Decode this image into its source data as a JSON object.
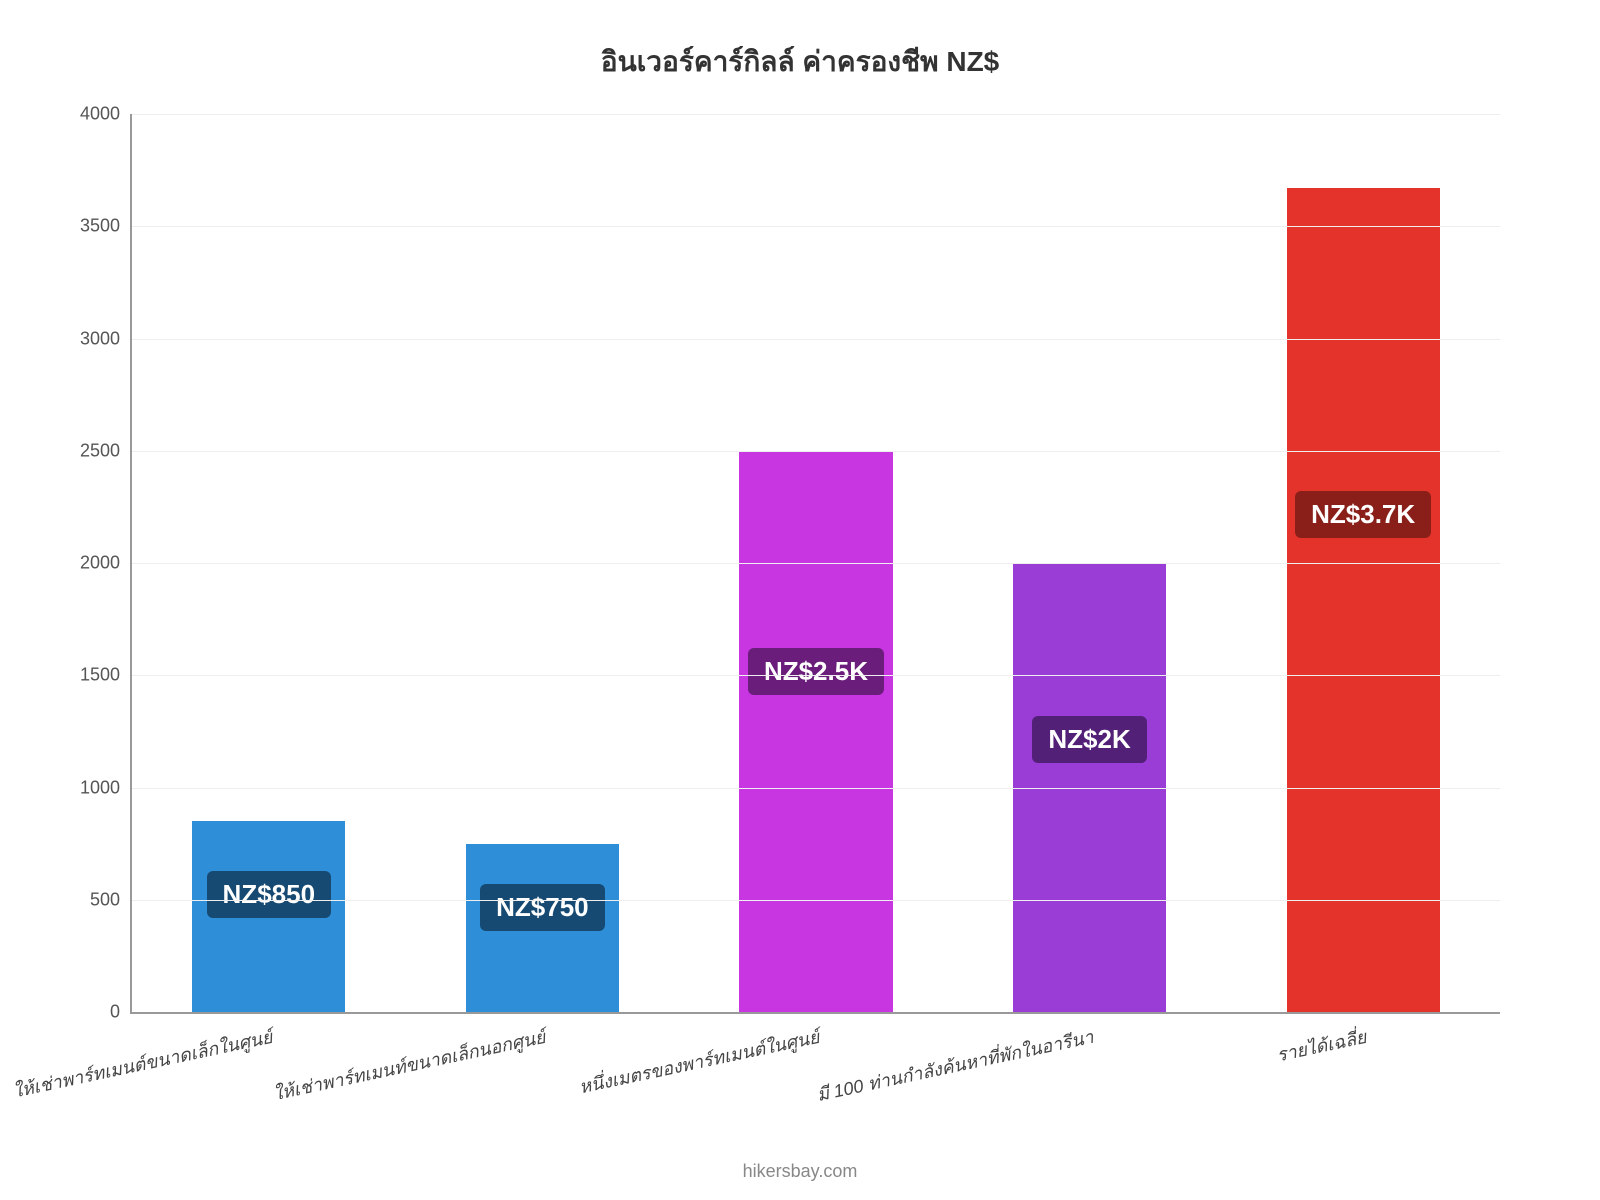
{
  "chart": {
    "type": "bar",
    "title": "อินเวอร์คาร์กิลล์ ค่าครองชีพ NZ$",
    "title_fontsize": 28,
    "title_color": "#333333",
    "background_color": "#ffffff",
    "grid_color": "#eeeeee",
    "axis_color": "#999999",
    "ylim": [
      0,
      4000
    ],
    "ytick_step": 500,
    "yticks": [
      0,
      500,
      1000,
      1500,
      2000,
      2500,
      3000,
      3500,
      4000
    ],
    "ytick_fontsize": 18,
    "xlabel_fontsize": 18,
    "xlabel_color": "#444444",
    "xlabel_rotation_deg": -12,
    "bar_width_pct": 56,
    "label_fontsize": 26,
    "label_text_color": "#ffffff",
    "categories": [
      "ให้เช่าพาร์ทเมนต์ขนาดเล็กในศูนย์",
      "ให้เช่าพาร์ทเมนท์ขนาดเล็กนอกศูนย์",
      "หนึ่งเมตรของพาร์ทเมนต์ในศูนย์",
      "มี 100 ท่านกำลังค้นหาที่พักในอารีนา",
      "รายได้เฉลี่ย"
    ],
    "values": [
      850,
      750,
      2500,
      2000,
      3670
    ],
    "value_labels": [
      "NZ$850",
      "NZ$750",
      "NZ$2.5K",
      "NZ$2K",
      "NZ$3.7K"
    ],
    "bar_colors": [
      "#2e8fd8",
      "#2e8fd8",
      "#c736e0",
      "#9a3cd6",
      "#e4332b"
    ],
    "label_bg_colors": [
      "#174a72",
      "#174a72",
      "#6a1d7a",
      "#532078",
      "#8a1f19"
    ],
    "footer": "hikersbay.com",
    "footer_fontsize": 18,
    "footer_color": "#888888"
  }
}
